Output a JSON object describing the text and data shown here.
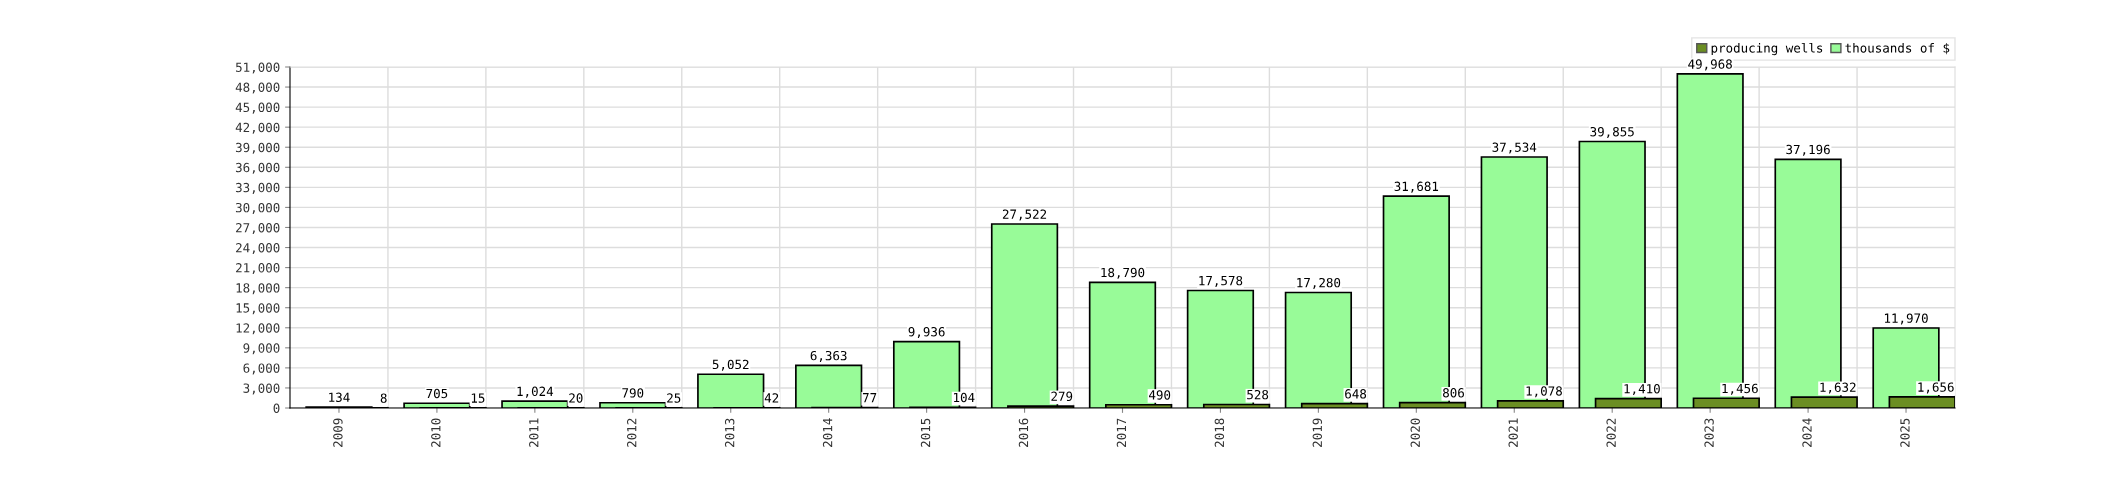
{
  "chart_data": {
    "type": "bar",
    "categories": [
      "2009",
      "2010",
      "2011",
      "2012",
      "2013",
      "2014",
      "2015",
      "2016",
      "2017",
      "2018",
      "2019",
      "2020",
      "2021",
      "2022",
      "2023",
      "2024",
      "2025"
    ],
    "series": [
      {
        "name": "producing wells",
        "color": "#6b8e23",
        "values": [
          8,
          15,
          20,
          25,
          42,
          77,
          104,
          279,
          490,
          528,
          648,
          806,
          1078,
          1410,
          1456,
          1632,
          1656
        ],
        "value_labels": [
          "8",
          "15",
          "20",
          "25",
          "42",
          "77",
          "104",
          "279",
          "490",
          "528",
          "648",
          "806",
          "1,078",
          "1,410",
          "1,456",
          "1,632",
          "1,656"
        ]
      },
      {
        "name": "thousands of $",
        "color": "#98fb98",
        "values": [
          134,
          705,
          1024,
          790,
          5052,
          6363,
          9936,
          27522,
          18790,
          17578,
          17280,
          31681,
          37534,
          39855,
          49968,
          37196,
          11970
        ],
        "value_labels": [
          "134",
          "705",
          "1,024",
          "790",
          "5,052",
          "6,363",
          "9,936",
          "27,522",
          "18,790",
          "17,578",
          "17,280",
          "31,681",
          "37,534",
          "39,855",
          "49,968",
          "37,196",
          "11,970"
        ]
      }
    ],
    "ylim": [
      0,
      51000
    ],
    "yticks": [
      0,
      {
        "value": 3000,
        "label": "3,000"
      },
      {
        "value": 6000,
        "label": "6,000"
      },
      {
        "value": 9000,
        "label": "9,000"
      },
      {
        "value": 12000,
        "label": "12,000"
      },
      {
        "value": 15000,
        "label": "15,000"
      },
      {
        "value": 18000,
        "label": "18,000"
      },
      {
        "value": 21000,
        "label": "21,000"
      },
      {
        "value": 24000,
        "label": "24,000"
      },
      {
        "value": 27000,
        "label": "27,000"
      },
      {
        "value": 30000,
        "label": "30,000"
      },
      {
        "value": 33000,
        "label": "33,000"
      },
      {
        "value": 36000,
        "label": "36,000"
      },
      {
        "value": 39000,
        "label": "39,000"
      },
      {
        "value": 42000,
        "label": "42,000"
      },
      {
        "value": 45000,
        "label": "45,000"
      },
      {
        "value": 48000,
        "label": "48,000"
      },
      {
        "value": 51000,
        "label": "51,000"
      }
    ],
    "grid": true,
    "legend": "top right"
  }
}
